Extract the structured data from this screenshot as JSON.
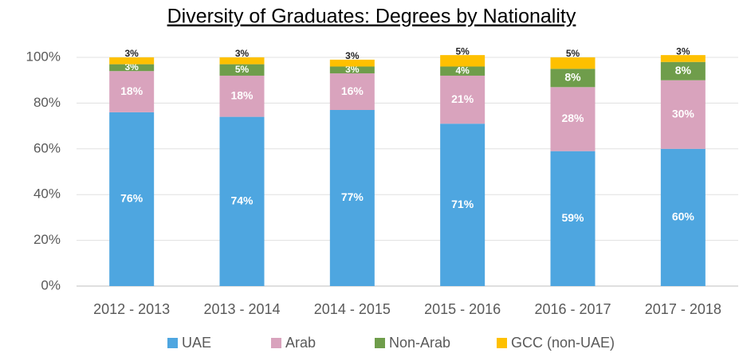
{
  "chart_data": {
    "type": "stacked_bar",
    "title": "Diversity of Graduates: Degrees by Nationality",
    "categories": [
      "2012 - 2013",
      "2013 - 2014",
      "2014 - 2015",
      "2015 - 2016",
      "2016 - 2017",
      "2017 - 2018"
    ],
    "series": [
      {
        "name": "UAE",
        "color": "#4ea6e0",
        "label_color": "#ffffff",
        "values": [
          76,
          74,
          77,
          71,
          59,
          60
        ],
        "value_labels": [
          "76%",
          "74%",
          "77%",
          "71%",
          "59%",
          "60%"
        ]
      },
      {
        "name": "Arab",
        "color": "#d9a3bd",
        "label_color": "#ffffff",
        "values": [
          18,
          18,
          16,
          21,
          28,
          30
        ],
        "value_labels": [
          "18%",
          "18%",
          "16%",
          "21%",
          "28%",
          "30%"
        ]
      },
      {
        "name": "Non-Arab",
        "color": "#6f9d4b",
        "label_color": "#ffffff",
        "values": [
          3,
          5,
          3,
          4,
          8,
          8
        ],
        "value_labels": [
          "3%",
          "5%",
          "3%",
          "4%",
          "8%",
          "8%"
        ]
      },
      {
        "name": "GCC (non-UAE)",
        "color": "#fec000",
        "label_color": "#262626",
        "values": [
          3,
          3,
          3,
          5,
          5,
          3
        ],
        "value_labels": [
          "3%",
          "3%",
          "3%",
          "5%",
          "5%",
          "3%"
        ]
      }
    ],
    "ylim": [
      0,
      100
    ],
    "yticks": [
      {
        "value": 0,
        "label": "0%"
      },
      {
        "value": 20,
        "label": "20%"
      },
      {
        "value": 40,
        "label": "40%"
      },
      {
        "value": 60,
        "label": "60%"
      },
      {
        "value": 80,
        "label": "80%"
      },
      {
        "value": 100,
        "label": "100%"
      }
    ],
    "grid": true,
    "legend": "bottom"
  }
}
